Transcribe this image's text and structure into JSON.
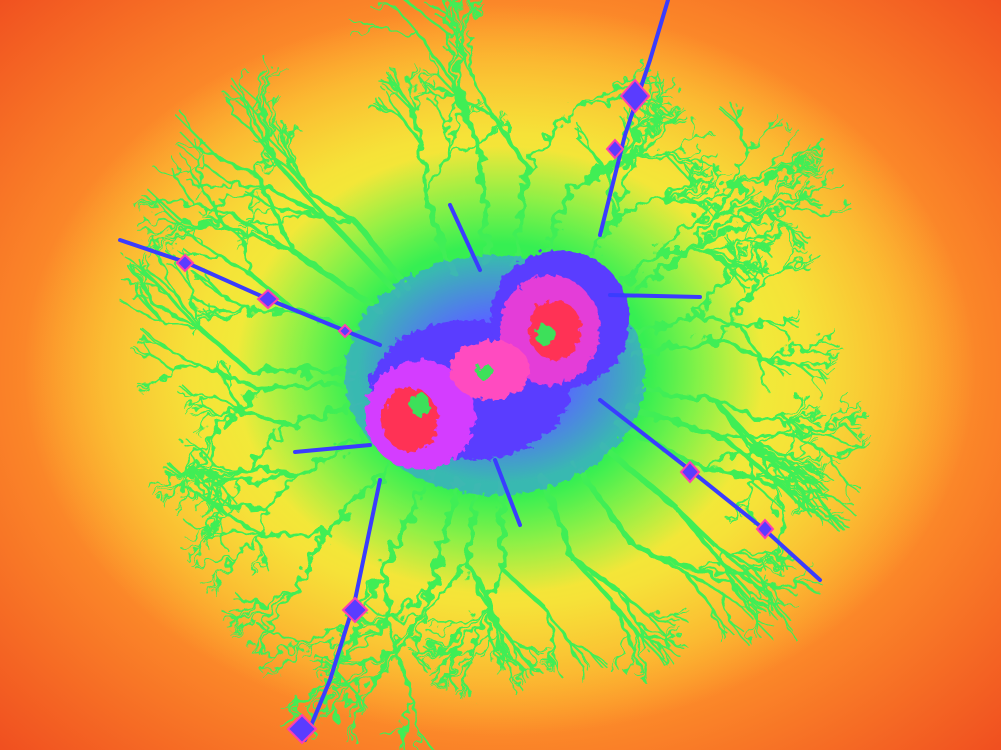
{
  "image": {
    "subject": "julia-set-fractal",
    "palette": {
      "outer": "#e8401c",
      "orange": "#ff9a2c",
      "yellow": "#f2f23a",
      "green": "#38ef4c",
      "cyan": "#2fd6d0",
      "blue": "#3a3cff",
      "magenta": "#ff3fb0",
      "red": "#ff2a2a"
    }
  }
}
